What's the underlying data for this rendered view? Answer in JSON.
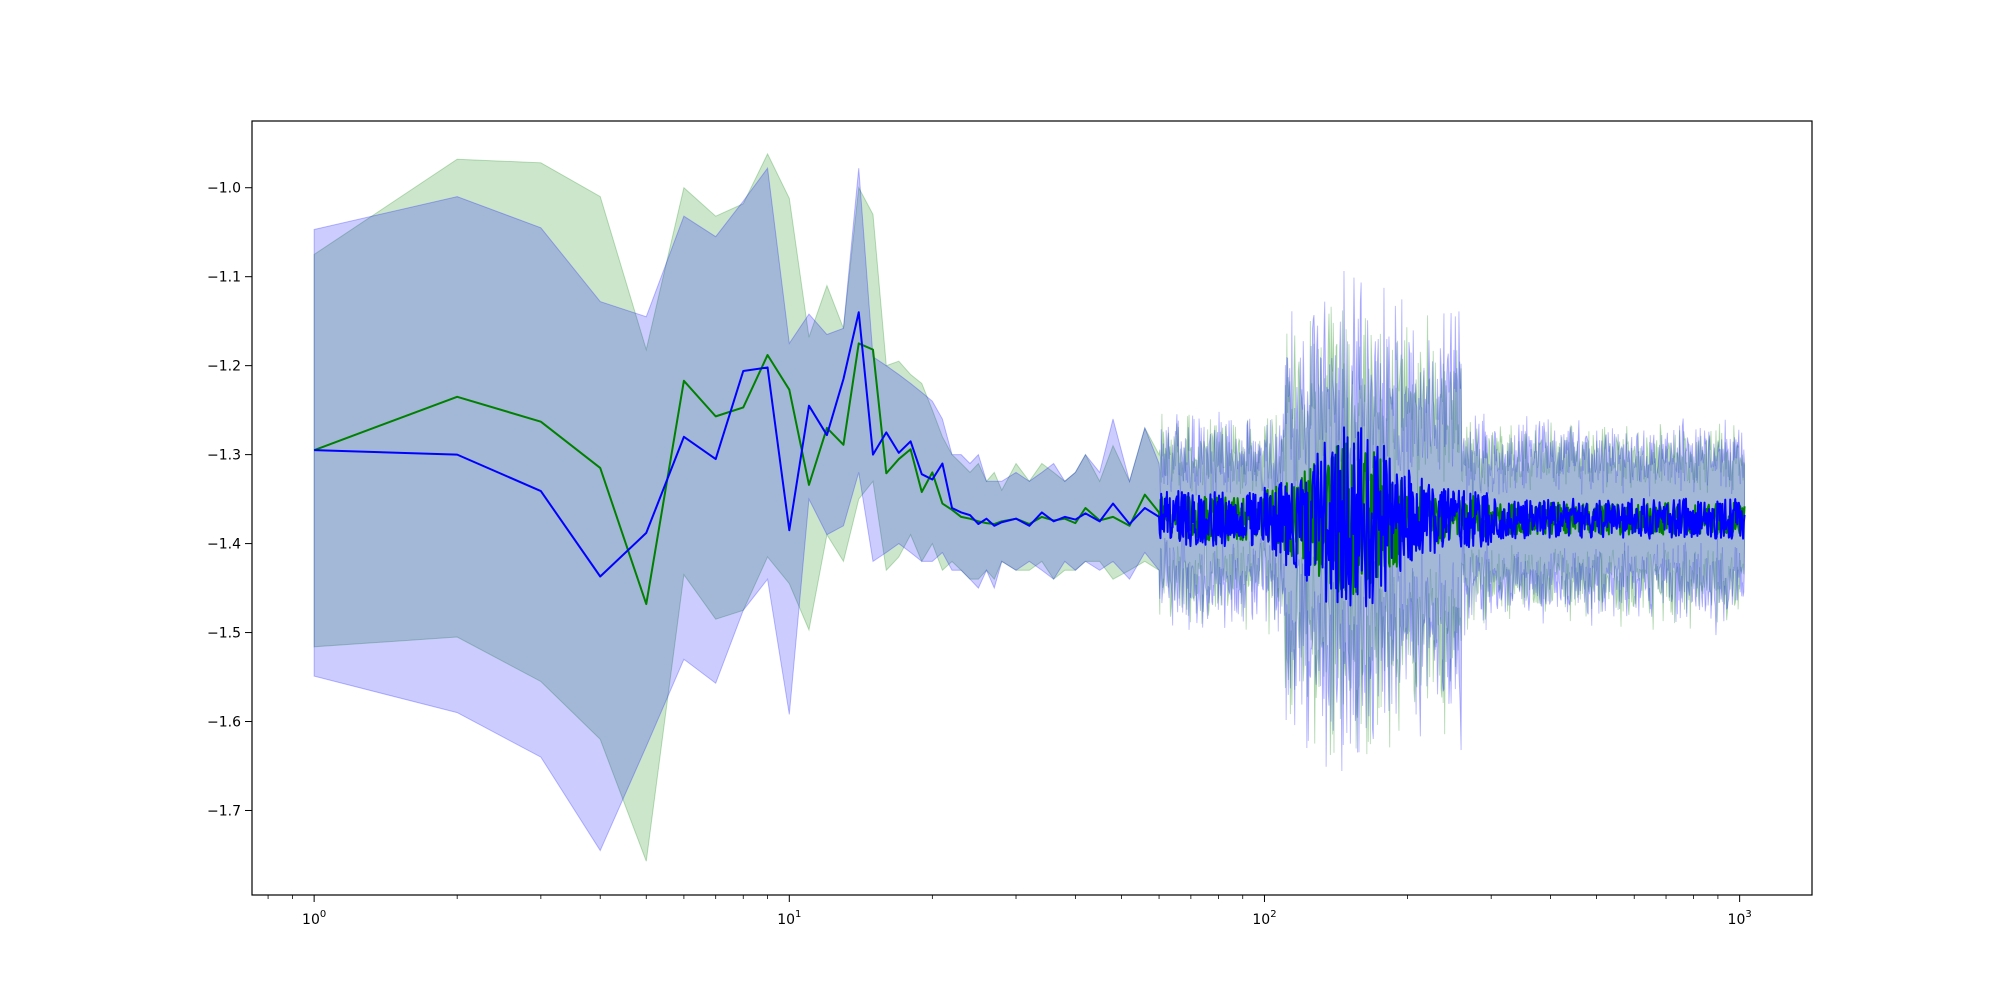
{
  "chart_data": {
    "type": "line",
    "title": "",
    "xlabel": "",
    "ylabel": "",
    "xscale": "log",
    "xlim": [
      0.74,
      1420
    ],
    "ylim": [
      -1.795,
      -0.925
    ],
    "grid": false,
    "legend": "none",
    "x_ticks": [
      {
        "value": 1,
        "base": "10",
        "exp": "0"
      },
      {
        "value": 10,
        "base": "10",
        "exp": "1"
      },
      {
        "value": 100,
        "base": "10",
        "exp": "2"
      },
      {
        "value": 1000,
        "base": "10",
        "exp": "3"
      }
    ],
    "y_ticks": [
      -1.0,
      -1.1,
      -1.2,
      -1.3,
      -1.4,
      -1.5,
      -1.6,
      -1.7
    ],
    "y_tick_labels": [
      "−1.0",
      "−1.1",
      "−1.2",
      "−1.3",
      "−1.4",
      "−1.5",
      "−1.6",
      "−1.7"
    ],
    "noisy_region": {
      "x_start": 60,
      "x_end": 1024,
      "description_values": {
        "center_range": [
          -1.42,
          -1.33
        ],
        "band_range": [
          -1.54,
          -1.06
        ]
      }
    },
    "series": [
      {
        "color": "#008000",
        "band_color": "#008000",
        "band_opacity": 0.2,
        "x": [
          1,
          2,
          3,
          4,
          5,
          6,
          7,
          8,
          9,
          10,
          11,
          12,
          13,
          14,
          15,
          16,
          17,
          18,
          19,
          20,
          21,
          22,
          23,
          24,
          25,
          26,
          27,
          28,
          30,
          32,
          34,
          36,
          38,
          40,
          42,
          45,
          48,
          52,
          56,
          60
        ],
        "y": [
          -1.295,
          -1.235,
          -1.263,
          -1.315,
          -1.468,
          -1.217,
          -1.257,
          -1.247,
          -1.188,
          -1.227,
          -1.334,
          -1.27,
          -1.289,
          -1.175,
          -1.182,
          -1.321,
          -1.305,
          -1.294,
          -1.342,
          -1.32,
          -1.355,
          -1.362,
          -1.37,
          -1.372,
          -1.375,
          -1.377,
          -1.378,
          -1.375,
          -1.372,
          -1.378,
          -1.37,
          -1.374,
          -1.372,
          -1.377,
          -1.36,
          -1.374,
          -1.37,
          -1.38,
          -1.345,
          -1.365
        ],
        "upper": [
          -1.075,
          -0.968,
          -0.972,
          -1.01,
          -1.182,
          -1.0,
          -1.032,
          -1.018,
          -0.962,
          -1.012,
          -1.168,
          -1.11,
          -1.158,
          -1.0,
          -1.03,
          -1.2,
          -1.195,
          -1.21,
          -1.22,
          -1.25,
          -1.28,
          -1.3,
          -1.31,
          -1.32,
          -1.31,
          -1.33,
          -1.32,
          -1.34,
          -1.31,
          -1.33,
          -1.31,
          -1.32,
          -1.33,
          -1.32,
          -1.3,
          -1.33,
          -1.29,
          -1.33,
          -1.27,
          -1.3
        ],
        "lower": [
          -1.516,
          -1.505,
          -1.555,
          -1.62,
          -1.757,
          -1.435,
          -1.485,
          -1.475,
          -1.415,
          -1.445,
          -1.497,
          -1.39,
          -1.42,
          -1.35,
          -1.33,
          -1.43,
          -1.415,
          -1.39,
          -1.42,
          -1.4,
          -1.43,
          -1.42,
          -1.43,
          -1.44,
          -1.44,
          -1.43,
          -1.44,
          -1.42,
          -1.43,
          -1.43,
          -1.42,
          -1.44,
          -1.43,
          -1.43,
          -1.42,
          -1.42,
          -1.44,
          -1.43,
          -1.42,
          -1.43
        ]
      },
      {
        "color": "#0000ff",
        "band_color": "#0000ff",
        "band_opacity": 0.2,
        "x": [
          1,
          2,
          3,
          4,
          5,
          6,
          7,
          8,
          9,
          10,
          11,
          12,
          13,
          14,
          15,
          16,
          17,
          18,
          19,
          20,
          21,
          22,
          23,
          24,
          25,
          26,
          27,
          28,
          30,
          32,
          34,
          36,
          38,
          40,
          42,
          45,
          48,
          52,
          56,
          60
        ],
        "y": [
          -1.295,
          -1.3,
          -1.341,
          -1.437,
          -1.388,
          -1.28,
          -1.305,
          -1.206,
          -1.202,
          -1.385,
          -1.245,
          -1.278,
          -1.215,
          -1.14,
          -1.3,
          -1.275,
          -1.298,
          -1.285,
          -1.322,
          -1.328,
          -1.31,
          -1.36,
          -1.365,
          -1.368,
          -1.378,
          -1.372,
          -1.38,
          -1.376,
          -1.372,
          -1.38,
          -1.365,
          -1.375,
          -1.37,
          -1.373,
          -1.366,
          -1.375,
          -1.355,
          -1.378,
          -1.36,
          -1.37
        ],
        "upper": [
          -1.047,
          -1.01,
          -1.045,
          -1.128,
          -1.145,
          -1.032,
          -1.055,
          -1.015,
          -0.978,
          -1.175,
          -1.142,
          -1.165,
          -1.158,
          -0.978,
          -1.19,
          -1.2,
          -1.21,
          -1.22,
          -1.23,
          -1.24,
          -1.26,
          -1.3,
          -1.3,
          -1.31,
          -1.3,
          -1.33,
          -1.33,
          -1.33,
          -1.32,
          -1.33,
          -1.32,
          -1.31,
          -1.33,
          -1.32,
          -1.3,
          -1.32,
          -1.26,
          -1.33,
          -1.27,
          -1.31
        ],
        "lower": [
          -1.549,
          -1.59,
          -1.64,
          -1.745,
          -1.628,
          -1.53,
          -1.557,
          -1.475,
          -1.44,
          -1.592,
          -1.35,
          -1.39,
          -1.38,
          -1.32,
          -1.42,
          -1.41,
          -1.4,
          -1.41,
          -1.42,
          -1.42,
          -1.41,
          -1.43,
          -1.43,
          -1.44,
          -1.45,
          -1.43,
          -1.45,
          -1.42,
          -1.43,
          -1.42,
          -1.43,
          -1.44,
          -1.42,
          -1.43,
          -1.42,
          -1.43,
          -1.42,
          -1.44,
          -1.41,
          -1.43
        ]
      }
    ]
  }
}
